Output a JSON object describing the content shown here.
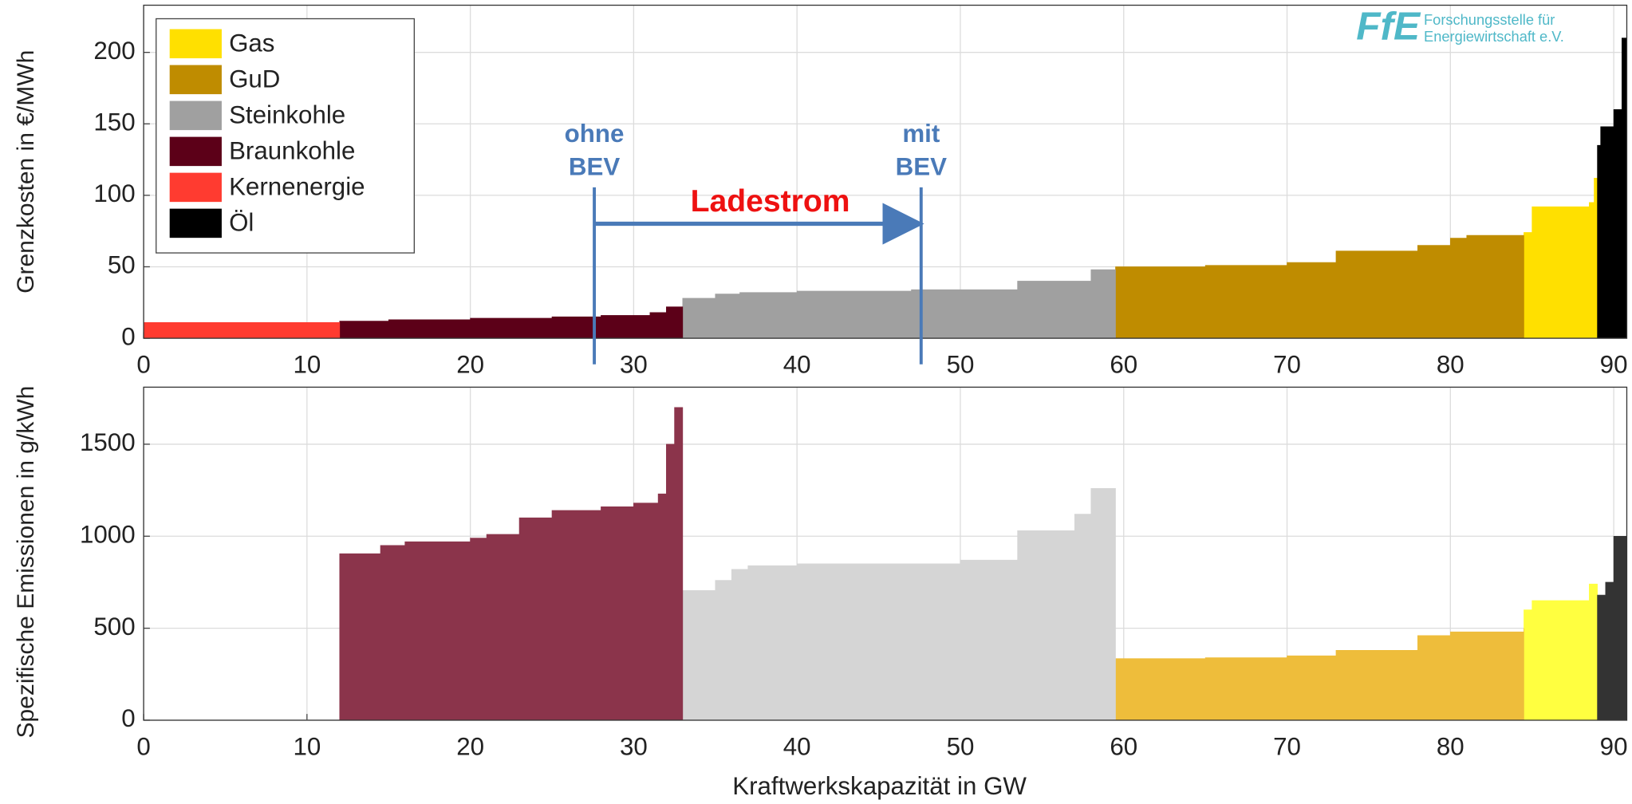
{
  "chart_data": [
    {
      "type": "step-area",
      "ylabel": "Grenzkosten in €/MWh",
      "xlim": [
        0,
        90.8
      ],
      "ylim": [
        0,
        233
      ],
      "xticks": [
        0,
        10,
        20,
        30,
        40,
        50,
        60,
        70,
        80,
        90
      ],
      "yticks": [
        0,
        50,
        100,
        150,
        200
      ],
      "grid": true,
      "legend": "upper left",
      "series": [
        {
          "name": "Gas",
          "color": "#ffe000",
          "x": [
            84.5,
            85,
            88.5,
            88.8,
            89
          ],
          "values": [
            74,
            92,
            95,
            112,
            112
          ]
        },
        {
          "name": "GuD",
          "color": "#bf8c00",
          "x": [
            59.5,
            65,
            70,
            73,
            78,
            80,
            81,
            84.5
          ],
          "values": [
            50,
            51,
            53,
            61,
            65,
            70,
            72,
            72
          ]
        },
        {
          "name": "Steinkohle",
          "color": "#a0a0a0",
          "x": [
            33,
            35,
            36.5,
            40,
            47,
            53.5,
            58,
            59.5
          ],
          "values": [
            28,
            31,
            32,
            33,
            34,
            40,
            48,
            48
          ]
        },
        {
          "name": "Braunkohle",
          "color": "#5c0018",
          "x": [
            12,
            15,
            20,
            25,
            28,
            31,
            32,
            33
          ],
          "values": [
            12,
            13,
            14,
            15,
            16,
            18,
            22,
            22
          ]
        },
        {
          "name": "Kernenergie",
          "color": "#ff3b30",
          "x": [
            0,
            12
          ],
          "values": [
            11,
            11
          ]
        },
        {
          "name": "Öl",
          "color": "#000000",
          "x": [
            89,
            89.2,
            90,
            90.5,
            90.8
          ],
          "values": [
            135,
            148,
            160,
            210,
            210
          ]
        }
      ],
      "annotations": [
        "ohne",
        "BEV",
        "mit",
        "BEV",
        "Ladestrom"
      ],
      "logo": {
        "mark": "FfE",
        "lines": [
          "Forschungsstelle für",
          "Energiewirtschaft e.V."
        ]
      }
    },
    {
      "type": "step-area",
      "ylabel": "Spezifische Emissionen in g/kWh",
      "xlabel": "Kraftwerkskapazität in GW",
      "xlim": [
        0,
        90.8
      ],
      "ylim": [
        0,
        1810
      ],
      "xticks": [
        0,
        10,
        20,
        30,
        40,
        50,
        60,
        70,
        80,
        90
      ],
      "yticks": [
        0,
        500,
        1000,
        1500
      ],
      "grid": true,
      "series": [
        {
          "color": "#ffff40",
          "x": [
            84.5,
            85,
            88.5,
            89
          ],
          "values": [
            600,
            650,
            740,
            740
          ]
        },
        {
          "color": "#eebd3b",
          "x": [
            59.5,
            65,
            70,
            73,
            78,
            80,
            84.5
          ],
          "values": [
            335,
            340,
            350,
            380,
            460,
            480,
            500
          ]
        },
        {
          "color": "#d5d5d5",
          "x": [
            33,
            35,
            36,
            37,
            40,
            50,
            53.5,
            57,
            58,
            59.5
          ],
          "values": [
            705,
            760,
            820,
            840,
            850,
            870,
            1030,
            1120,
            1260,
            1260
          ]
        },
        {
          "color": "#8b344b",
          "x": [
            12,
            14.5,
            16,
            20,
            21,
            23,
            25,
            28,
            30,
            31.5,
            32,
            32.5,
            33
          ],
          "values": [
            905,
            950,
            970,
            990,
            1010,
            1100,
            1140,
            1160,
            1180,
            1230,
            1500,
            1700,
            1700
          ]
        },
        {
          "color": "#333333",
          "x": [
            89,
            89.5,
            90,
            90.8
          ],
          "values": [
            680,
            750,
            1000,
            1090
          ]
        }
      ]
    }
  ]
}
